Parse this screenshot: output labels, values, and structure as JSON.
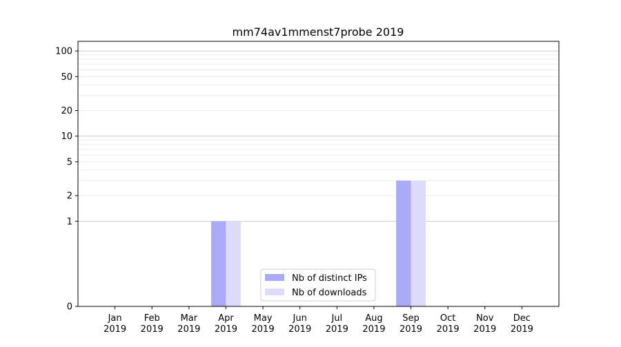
{
  "chart_data": {
    "type": "bar",
    "title": "mm74av1mmenst7probe 2019",
    "xlabel": "",
    "ylabel": "",
    "yscale": "symlog",
    "ylim": [
      0,
      130
    ],
    "yticks": [
      {
        "value": 0,
        "label": "0"
      },
      {
        "value": 1,
        "label": "1"
      },
      {
        "value": 2,
        "label": "2"
      },
      {
        "value": 5,
        "label": "5"
      },
      {
        "value": 10,
        "label": "10"
      },
      {
        "value": 20,
        "label": "20"
      },
      {
        "value": 50,
        "label": "50"
      },
      {
        "value": 100,
        "label": "100"
      }
    ],
    "categories": [
      {
        "month": "Jan",
        "year": "2019"
      },
      {
        "month": "Feb",
        "year": "2019"
      },
      {
        "month": "Mar",
        "year": "2019"
      },
      {
        "month": "Apr",
        "year": "2019"
      },
      {
        "month": "May",
        "year": "2019"
      },
      {
        "month": "Jun",
        "year": "2019"
      },
      {
        "month": "Jul",
        "year": "2019"
      },
      {
        "month": "Aug",
        "year": "2019"
      },
      {
        "month": "Sep",
        "year": "2019"
      },
      {
        "month": "Oct",
        "year": "2019"
      },
      {
        "month": "Nov",
        "year": "2019"
      },
      {
        "month": "Dec",
        "year": "2019"
      }
    ],
    "series": [
      {
        "name": "Nb of distinct IPs",
        "color": "#aaaaf8",
        "values": [
          0,
          0,
          0,
          1,
          0,
          0,
          0,
          0,
          3,
          0,
          0,
          0
        ]
      },
      {
        "name": "Nb of downloads",
        "color": "#dcdcfa",
        "values": [
          0,
          0,
          0,
          1,
          0,
          0,
          0,
          0,
          3,
          0,
          0,
          0
        ]
      }
    ],
    "grid": true,
    "legend_position": "lower-center"
  }
}
